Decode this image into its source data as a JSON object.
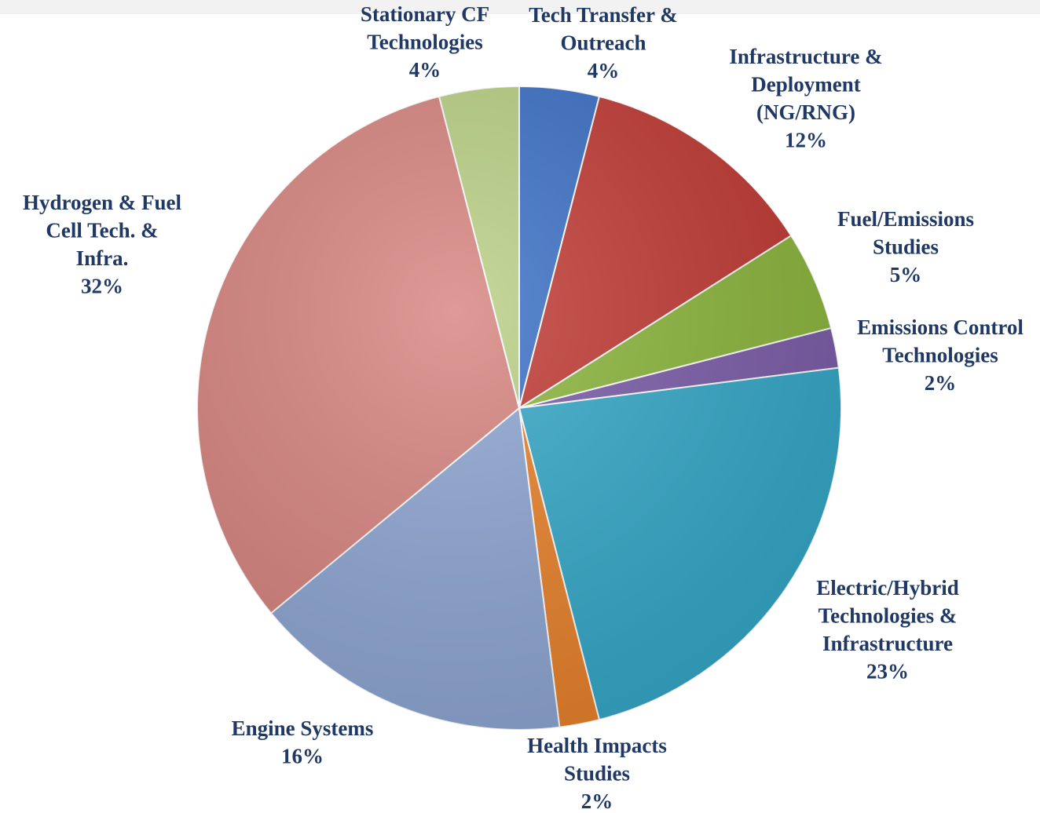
{
  "chart_data": {
    "type": "pie",
    "categories": [
      [
        "Tech Transfer &",
        "Outreach"
      ],
      [
        "Infrastructure &",
        "Deployment",
        "(NG/RNG)"
      ],
      [
        "Fuel/Emissions",
        "Studies"
      ],
      [
        "Emissions Control",
        "Technologies"
      ],
      [
        "Electric/Hybrid",
        "Technologies &",
        "Infrastructure"
      ],
      [
        "Health Impacts",
        "Studies"
      ],
      [
        "Engine Systems"
      ],
      [
        "Hydrogen & Fuel",
        "Cell Tech. &",
        "Infra."
      ],
      [
        "Stationary CF",
        "Technologies"
      ]
    ],
    "values": [
      4,
      12,
      5,
      2,
      23,
      2,
      16,
      32,
      4
    ],
    "value_labels": [
      "4%",
      "12%",
      "5%",
      "2%",
      "23%",
      "2%",
      "16%",
      "32%",
      "4%"
    ],
    "colors": [
      "#3b70c6",
      "#c13a34",
      "#8cb63c",
      "#7b5da8",
      "#35a8c8",
      "#e8822b",
      "#8ea6d3",
      "#d7847f",
      "#b9d084"
    ]
  }
}
